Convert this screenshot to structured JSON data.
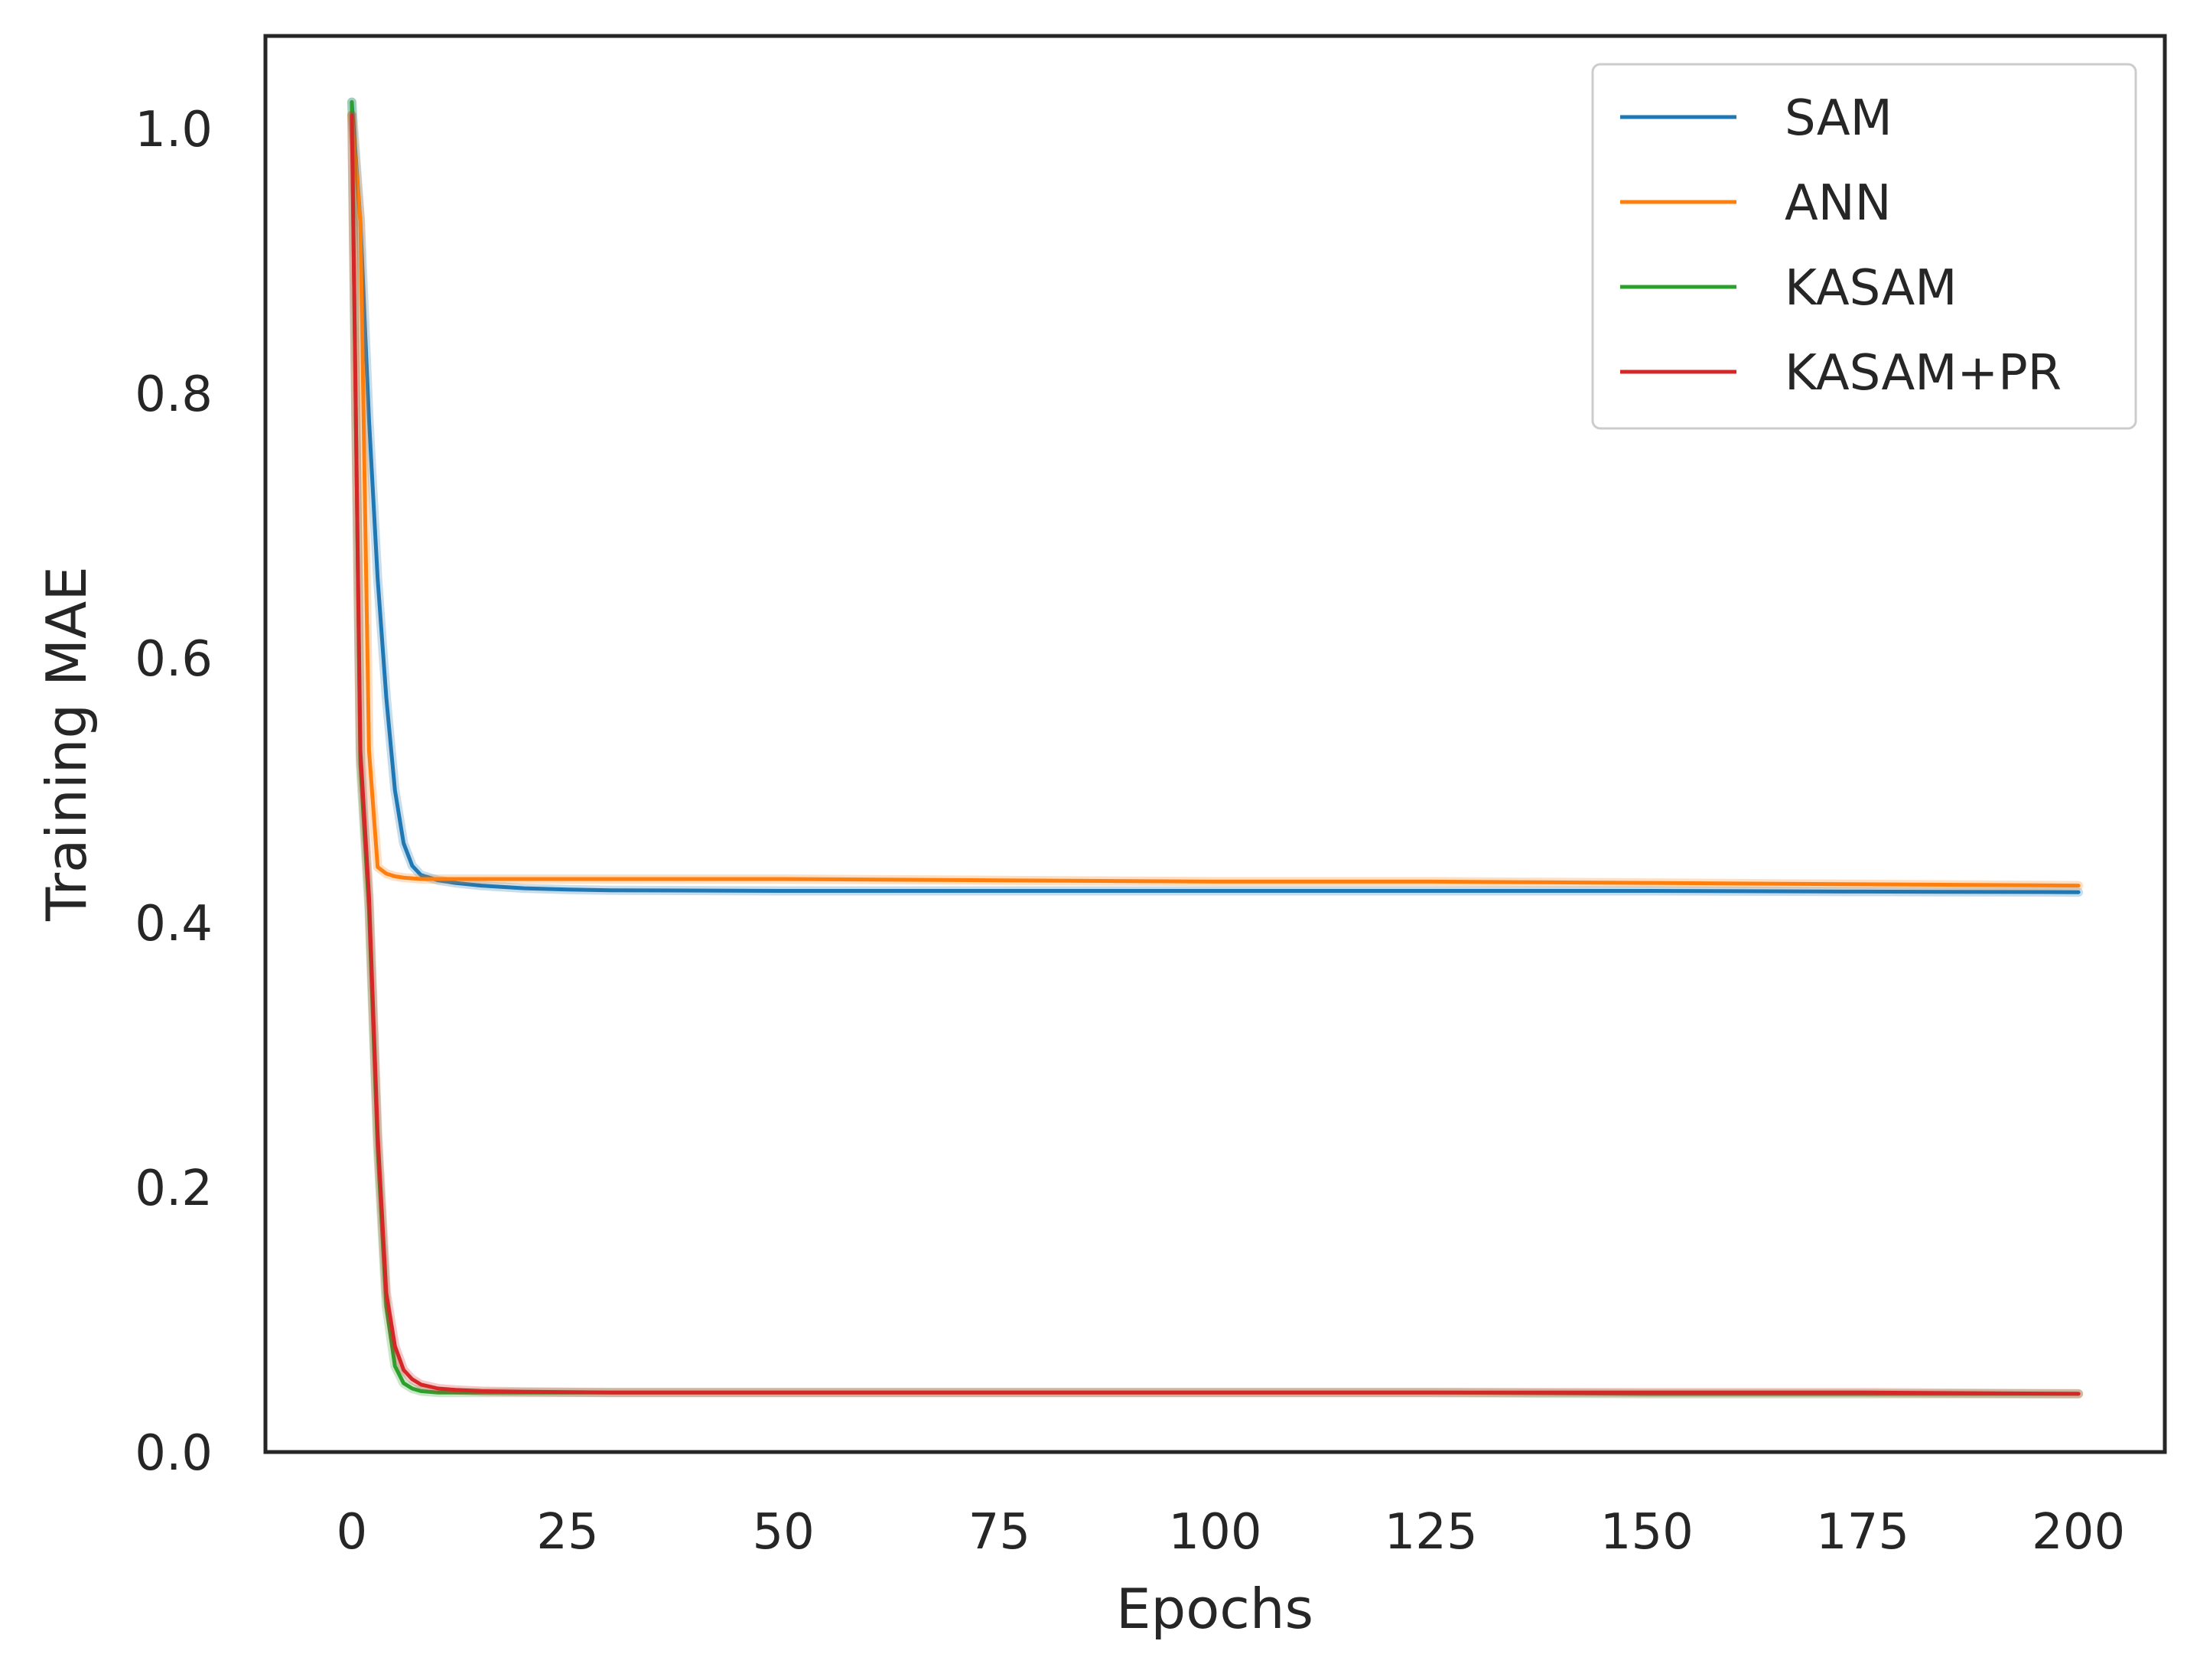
{
  "chart_data": {
    "type": "line",
    "title": "",
    "xlabel": "Epochs",
    "ylabel": "Training MAE",
    "xlim": [
      -10,
      210
    ],
    "ylim": [
      0.0,
      1.07
    ],
    "xticks": [
      0,
      25,
      50,
      75,
      100,
      125,
      150,
      175,
      200
    ],
    "xtick_labels": [
      "0",
      "25",
      "50",
      "75",
      "100",
      "125",
      "150",
      "175",
      "200"
    ],
    "yticks": [
      0.0,
      0.2,
      0.4,
      0.6,
      0.8,
      1.0
    ],
    "ytick_labels": [
      "0.0",
      "0.2",
      "0.4",
      "0.6",
      "0.8",
      "1.0"
    ],
    "grid": false,
    "legend_position": "top-right",
    "series": [
      {
        "name": "SAM",
        "color": "#1f77b4",
        "x": [
          0,
          1,
          2,
          3,
          4,
          5,
          6,
          7,
          8,
          10,
          12,
          15,
          20,
          25,
          30,
          50,
          75,
          100,
          125,
          150,
          175,
          200
        ],
        "y": [
          1.02,
          0.93,
          0.78,
          0.66,
          0.57,
          0.5,
          0.46,
          0.443,
          0.436,
          0.432,
          0.43,
          0.428,
          0.426,
          0.425,
          0.4245,
          0.424,
          0.424,
          0.424,
          0.424,
          0.424,
          0.4235,
          0.423
        ]
      },
      {
        "name": "ANN",
        "color": "#ff7f0e",
        "x": [
          0,
          1,
          2,
          3,
          4,
          5,
          6,
          8,
          10,
          15,
          20,
          30,
          50,
          75,
          100,
          125,
          150,
          175,
          200
        ],
        "y": [
          1.01,
          0.93,
          0.53,
          0.442,
          0.437,
          0.435,
          0.434,
          0.433,
          0.433,
          0.433,
          0.433,
          0.433,
          0.433,
          0.432,
          0.431,
          0.431,
          0.43,
          0.429,
          0.428
        ]
      },
      {
        "name": "KASAM",
        "color": "#2ca02c",
        "x": [
          0,
          1,
          2,
          3,
          4,
          5,
          6,
          7,
          8,
          10,
          12,
          15,
          20,
          30,
          50,
          75,
          100,
          125,
          150,
          175,
          200
        ],
        "y": [
          1.02,
          0.52,
          0.41,
          0.23,
          0.11,
          0.065,
          0.052,
          0.048,
          0.046,
          0.045,
          0.045,
          0.045,
          0.045,
          0.045,
          0.045,
          0.045,
          0.045,
          0.045,
          0.044,
          0.044,
          0.044
        ]
      },
      {
        "name": "KASAM+PR",
        "color": "#d62728",
        "x": [
          0,
          1,
          2,
          3,
          4,
          5,
          6,
          7,
          8,
          10,
          12,
          15,
          20,
          30,
          50,
          75,
          100,
          125,
          150,
          175,
          200
        ],
        "y": [
          1.01,
          0.53,
          0.42,
          0.24,
          0.12,
          0.08,
          0.062,
          0.055,
          0.051,
          0.048,
          0.047,
          0.046,
          0.0455,
          0.045,
          0.045,
          0.045,
          0.045,
          0.045,
          0.045,
          0.045,
          0.044
        ]
      }
    ]
  }
}
